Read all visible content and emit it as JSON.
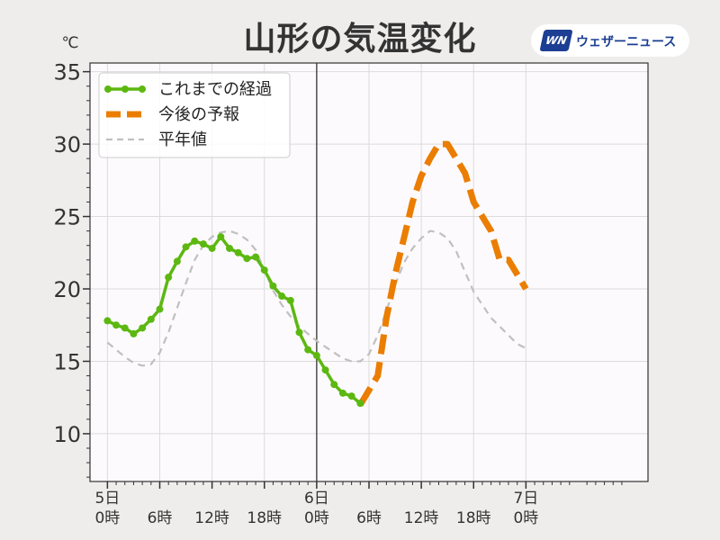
{
  "title": "山形の気温変化",
  "logo": {
    "mark": "WN",
    "text": "ウェザーニュース"
  },
  "chart_data": {
    "type": "line",
    "title": "山形の気温変化",
    "ylabel": "℃",
    "ylim": [
      6.7,
      35.6
    ],
    "xlim": [
      -2.0,
      62.0
    ],
    "yticks": [
      10,
      15,
      20,
      25,
      30,
      35
    ],
    "xticks": [
      {
        "x": 0,
        "label": [
          "5日",
          "0時"
        ]
      },
      {
        "x": 6,
        "label": [
          "",
          "6時"
        ]
      },
      {
        "x": 12,
        "label": [
          "",
          "12時"
        ]
      },
      {
        "x": 18,
        "label": [
          "",
          "18時"
        ]
      },
      {
        "x": 24,
        "label": [
          "6日",
          "0時"
        ]
      },
      {
        "x": 30,
        "label": [
          "",
          "6時"
        ]
      },
      {
        "x": 36,
        "label": [
          "",
          "12時"
        ]
      },
      {
        "x": 42,
        "label": [
          "",
          "18時"
        ]
      },
      {
        "x": 48,
        "label": [
          "7日",
          "0時"
        ]
      }
    ],
    "now_x": 24,
    "grid": true,
    "legend_position": "top-left",
    "series": [
      {
        "name": "これまでの経過",
        "style": "solid-markers",
        "color": "#5cb810",
        "x": [
          0,
          1,
          2,
          3,
          4,
          5,
          6,
          7,
          8,
          9,
          10,
          11,
          12,
          13,
          14,
          15,
          16,
          17,
          18,
          19,
          20,
          21,
          22,
          23,
          24,
          25,
          26,
          27,
          28,
          29
        ],
        "y": [
          17.8,
          17.5,
          17.3,
          16.9,
          17.3,
          17.9,
          18.6,
          20.8,
          21.9,
          22.9,
          23.3,
          23.1,
          22.8,
          23.6,
          22.8,
          22.5,
          22.1,
          22.2,
          21.3,
          20.2,
          19.5,
          19.2,
          17.0,
          15.8,
          15.4,
          14.4,
          13.4,
          12.8,
          12.6,
          12.1
        ]
      },
      {
        "name": "今後の予報",
        "style": "dashed-thick",
        "color": "#eb7d00",
        "x": [
          29,
          30,
          31,
          32,
          33,
          34,
          35,
          36,
          37,
          38,
          39,
          40,
          41,
          42,
          43,
          44,
          45,
          46,
          47,
          48
        ],
        "y": [
          12.0,
          13.0,
          14.0,
          18.0,
          21.0,
          23.5,
          26.0,
          27.8,
          29.0,
          30.0,
          30.0,
          29.0,
          28.0,
          26.0,
          25.0,
          24.0,
          22.0,
          22.0,
          21.0,
          20.0
        ]
      },
      {
        "name": "平年値",
        "style": "dashed-thin",
        "color": "#c0c0c0",
        "x": [
          0,
          1,
          2,
          3,
          4,
          5,
          6,
          7,
          8,
          9,
          10,
          11,
          12,
          13,
          14,
          15,
          16,
          17,
          18,
          19,
          20,
          21,
          22,
          23,
          24,
          25,
          26,
          27,
          28,
          29,
          30,
          31,
          32,
          33,
          34,
          35,
          36,
          37,
          38,
          39,
          40,
          41,
          42,
          43,
          44,
          45,
          46,
          47,
          48
        ],
        "y": [
          16.3,
          15.8,
          15.3,
          14.9,
          14.7,
          14.8,
          15.6,
          17.0,
          18.7,
          20.4,
          22.0,
          23.0,
          23.6,
          23.9,
          24.0,
          23.8,
          23.4,
          22.7,
          21.3,
          19.9,
          18.9,
          18.1,
          17.4,
          16.9,
          16.4,
          16.0,
          15.6,
          15.2,
          15.0,
          15.0,
          15.5,
          16.8,
          18.5,
          20.3,
          21.8,
          22.8,
          23.5,
          24.0,
          23.9,
          23.5,
          22.6,
          21.2,
          19.8,
          18.9,
          18.0,
          17.4,
          16.8,
          16.2,
          15.9
        ]
      }
    ]
  }
}
